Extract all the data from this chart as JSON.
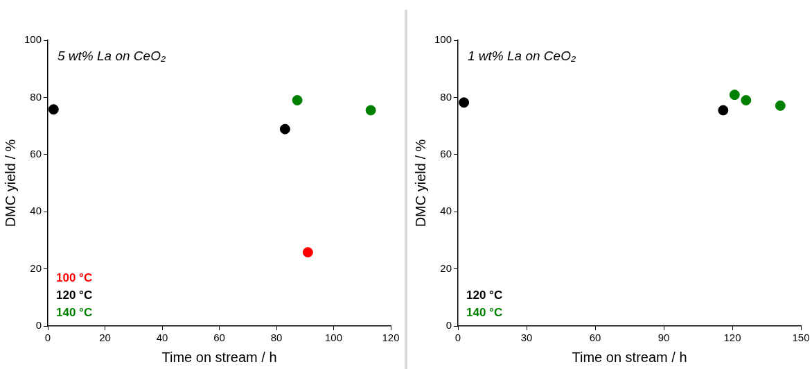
{
  "chart_data": [
    {
      "type": "scatter",
      "title": "5 wt% La on CeO₂",
      "xlabel": "Time on stream / h",
      "ylabel": "DMC yield / %",
      "xlim": [
        0,
        120
      ],
      "xticks": [
        0,
        20,
        40,
        60,
        80,
        100,
        120
      ],
      "ylim": [
        0,
        100
      ],
      "yticks": [
        0,
        20,
        40,
        60,
        80,
        100
      ],
      "grid": false,
      "legend": "bottom left",
      "marker": "circle",
      "series": [
        {
          "name": "100 °C",
          "color": "#ff0000",
          "x": [
            91
          ],
          "values": [
            25.8
          ]
        },
        {
          "name": "120 °C",
          "color": "#000000",
          "x": [
            2,
            83
          ],
          "values": [
            75.8,
            68.9
          ]
        },
        {
          "name": "140 °C",
          "color": "#008000",
          "x": [
            87.3,
            113
          ],
          "values": [
            79,
            75.5
          ]
        }
      ]
    },
    {
      "type": "scatter",
      "title": "1 wt% La on CeO₂",
      "xlabel": "Time on stream / h",
      "ylabel": "DMC yield / %",
      "xlim": [
        0,
        150
      ],
      "xticks": [
        0,
        30,
        60,
        90,
        120,
        150
      ],
      "ylim": [
        0,
        100
      ],
      "yticks": [
        0,
        20,
        40,
        60,
        80,
        100
      ],
      "grid": false,
      "legend": "bottom left",
      "marker": "circle",
      "series": [
        {
          "name": "120 °C",
          "color": "#000000",
          "x": [
            2.6,
            116
          ],
          "values": [
            78.2,
            75.5
          ]
        },
        {
          "name": "140 °C",
          "color": "#008000",
          "x": [
            121,
            126,
            141
          ],
          "values": [
            80.9,
            79,
            77.1
          ]
        }
      ]
    }
  ]
}
